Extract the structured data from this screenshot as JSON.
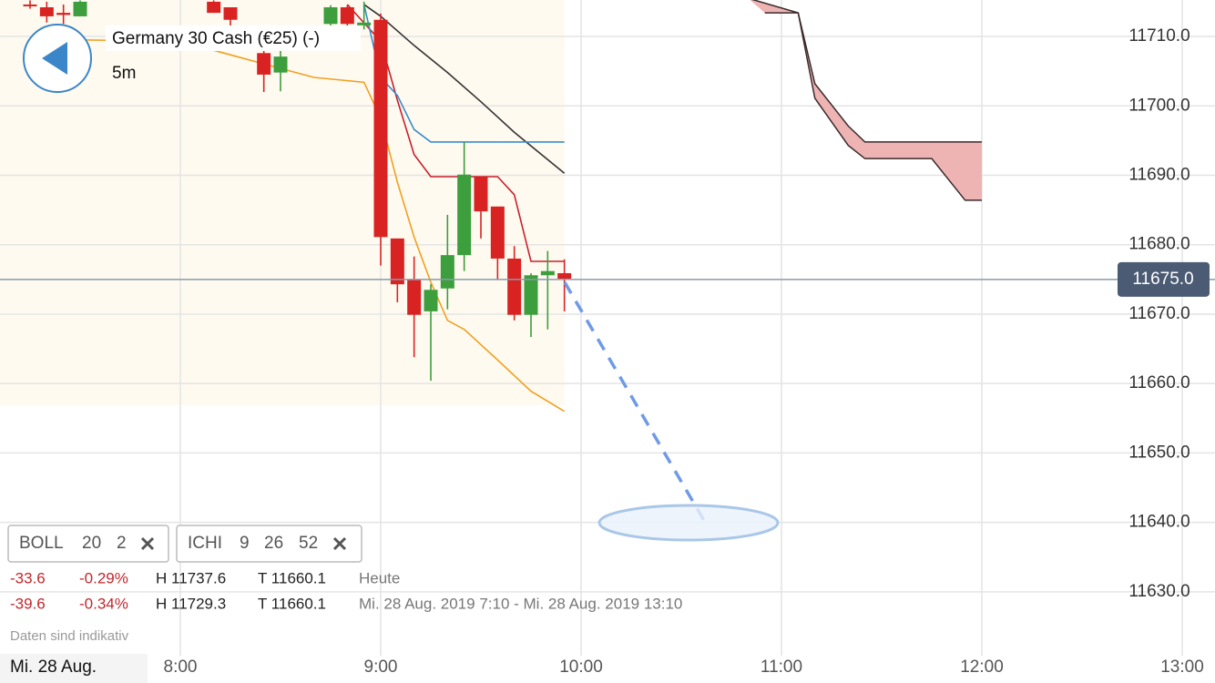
{
  "instrument": "Germany 30 Cash (€25) (-)",
  "interval": "5m",
  "indicators": [
    {
      "name": "BOLL",
      "params": [
        20,
        2
      ]
    },
    {
      "name": "ICHI",
      "params": [
        9,
        26,
        52
      ]
    }
  ],
  "stats": [
    [
      "-33.6",
      "-0.29%",
      "H 11737.6",
      "T 11660.1",
      "Heute"
    ],
    [
      "-39.6",
      "-0.34%",
      "H 11729.3",
      "T 11660.1",
      "Mi. 28 Aug. 2019 7:10 - Mi. 28 Aug. 2019 13:10"
    ]
  ],
  "disclaimer": "Daten sind indikativ",
  "chart_data": {
    "type": "candlestick",
    "date_label": "Mi. 28 Aug.",
    "ylim": [
      11620.8,
      11715.25
    ],
    "yticks": [
      {
        "value": 11630,
        "label": "11630.0"
      },
      {
        "value": 11640,
        "label": "11640.0"
      },
      {
        "value": 11650,
        "label": "11650.0"
      },
      {
        "value": 11660,
        "label": "11660.0"
      },
      {
        "value": 11670,
        "label": "11670.0"
      },
      {
        "value": 11680,
        "label": "11680.0"
      },
      {
        "value": 11690,
        "label": "11690.0"
      },
      {
        "value": 11700,
        "label": "11700.0"
      },
      {
        "value": 11710,
        "label": "11710.0"
      }
    ],
    "xticks": [
      "8:00",
      "9:00",
      "10:00",
      "11:00",
      "12:00",
      "13:00"
    ],
    "grid": true,
    "up_color": "#3c9e3c",
    "down_color": "#d92323",
    "current_price": {
      "value": 11675,
      "label": "11675.0"
    },
    "candles": {
      "x": [
        "7:15",
        "7:20",
        "7:25",
        "7:30",
        "8:10",
        "8:15",
        "8:25",
        "8:30",
        "8:45",
        "8:50",
        "8:55",
        "9:00",
        "9:05",
        "9:10",
        "9:15",
        "9:20",
        "9:25",
        "9:30",
        "9:35",
        "9:40",
        "9:45",
        "9:50",
        "9:55"
      ],
      "open": [
        11714.6,
        11714.2,
        11713.4,
        11712.9,
        11715.0,
        11714.2,
        11707.6,
        11704.8,
        11711.8,
        11714.2,
        11711.6,
        11712.4,
        11680.9,
        11674.9,
        11670.4,
        11673.7,
        11678.5,
        11689.8,
        11685.5,
        11678.0,
        11669.9,
        11675.6,
        11675.9
      ],
      "high": [
        11715.2,
        11715.0,
        11714.6,
        11715.2,
        11715.2,
        11714.2,
        11707.9,
        11707.9,
        11714.5,
        11714.5,
        11715.0,
        11713.3,
        11680.9,
        11678.3,
        11674.3,
        11684.3,
        11694.8,
        11689.8,
        11685.5,
        11679.8,
        11675.9,
        11679.1,
        11677.9
      ],
      "low": [
        11714.0,
        11712.0,
        11711.8,
        11712.9,
        11713.4,
        11711.5,
        11702.0,
        11702.1,
        11711.0,
        11711.2,
        11711.0,
        11677.0,
        11671.7,
        11663.8,
        11660.4,
        11670.7,
        11676.2,
        11680.9,
        11674.9,
        11669.1,
        11666.7,
        11667.8,
        11670.4
      ],
      "close": [
        11714.4,
        11712.9,
        11713.1,
        11715.0,
        11713.4,
        11712.4,
        11704.5,
        11707.1,
        11714.2,
        11711.8,
        11712.0,
        11681.1,
        11674.3,
        11669.9,
        11673.5,
        11678.5,
        11690.1,
        11684.8,
        11678.0,
        11669.9,
        11675.6,
        11676.2,
        11675.1
      ]
    },
    "lines": [
      {
        "color": "#f0a020",
        "x": [
          "7:30",
          "8:00",
          "8:30",
          "8:40",
          "8:55",
          "9:00",
          "9:05",
          "9:10",
          "9:15",
          "9:20",
          "9:25",
          "9:35",
          "9:45",
          "9:55"
        ],
        "values": [
          11709.5,
          11709.3,
          11705.4,
          11704.1,
          11703.4,
          11698.2,
          11689.0,
          11681.1,
          11674.6,
          11669.1,
          11667.8,
          11663.4,
          11658.9,
          11656.0
        ]
      },
      {
        "color": "#333333",
        "x": [
          "8:55",
          "9:00",
          "9:10",
          "9:20",
          "9:30",
          "9:40",
          "9:55"
        ],
        "values": [
          11714.6,
          11712.9,
          11708.7,
          11704.8,
          11700.6,
          11696.2,
          11690.3
        ]
      },
      {
        "color": "#c8202a",
        "x": [
          "8:50",
          "9:00",
          "9:05",
          "9:10",
          "9:15",
          "9:35",
          "9:40",
          "9:45",
          "9:55"
        ],
        "values": [
          11714.6,
          11709.3,
          11700.8,
          11693.0,
          11689.8,
          11689.8,
          11687.2,
          11677.6,
          11677.6
        ]
      },
      {
        "color": "#3a8ccc",
        "x": [
          "8:55",
          "9:00",
          "9:05",
          "9:10",
          "9:15",
          "9:55"
        ],
        "values": [
          11714.6,
          11704.1,
          11701.5,
          11696.6,
          11694.8,
          11694.8
        ]
      }
    ],
    "cloud": {
      "fill": "#eeb4b4",
      "stroke": "#3a2a2a",
      "upper": {
        "x": [
          "10:50",
          "11:05",
          "11:10",
          "11:20",
          "11:25",
          "12:00"
        ],
        "values": [
          11715.5,
          11713.4,
          11703.2,
          11697.1,
          11694.8,
          11694.8
        ]
      },
      "lower": {
        "x": [
          "10:55",
          "11:05",
          "11:10",
          "11:20",
          "11:25",
          "11:45",
          "11:55",
          "12:00"
        ],
        "values": [
          11713.4,
          11713.4,
          11701.1,
          11694.3,
          11692.4,
          11692.4,
          11686.4,
          11686.4
        ]
      }
    }
  }
}
